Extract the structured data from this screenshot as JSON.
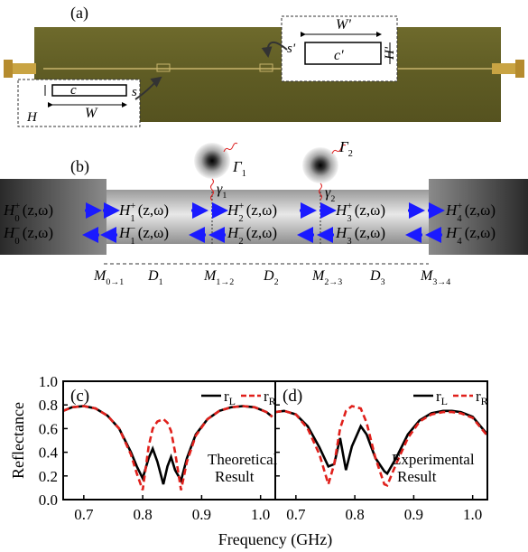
{
  "figure": {
    "a": {
      "label": "(a)",
      "inset_right": {
        "W": "W'",
        "s": "s'",
        "c": "c'",
        "H": "H'"
      },
      "inset_left": {
        "c": "c",
        "W": "W",
        "H": "H",
        "s": "s"
      }
    },
    "b": {
      "label": "(b)",
      "fields": [
        {
          "base": "H",
          "sup": "+",
          "sub": "0",
          "arg": "(z,ω)"
        },
        {
          "base": "H",
          "sup": "−",
          "sub": "0",
          "arg": "(z,ω)"
        },
        {
          "base": "H",
          "sup": "+",
          "sub": "1",
          "arg": "(z,ω)"
        },
        {
          "base": "H",
          "sup": "−",
          "sub": "1",
          "arg": "(z,ω)"
        },
        {
          "base": "H",
          "sup": "+",
          "sub": "2",
          "arg": "(z,ω)"
        },
        {
          "base": "H",
          "sup": "−",
          "sub": "2",
          "arg": "(z,ω)"
        },
        {
          "base": "H",
          "sup": "+",
          "sub": "3",
          "arg": "(z,ω)"
        },
        {
          "base": "H",
          "sup": "−",
          "sub": "3",
          "arg": "(z,ω)"
        },
        {
          "base": "H",
          "sup": "+",
          "sub": "4",
          "arg": "(z,ω)"
        },
        {
          "base": "H",
          "sup": "−",
          "sub": "4",
          "arg": "(z,ω)"
        }
      ],
      "emitters": [
        {
          "Gamma": {
            "base": "Γ",
            "sub": "1"
          },
          "gamma": {
            "base": "γ",
            "sub": "1"
          }
        },
        {
          "Gamma": {
            "base": "Γ",
            "sub": "2"
          },
          "gamma": {
            "base": "γ",
            "sub": "2"
          }
        }
      ],
      "segments": [
        {
          "base": "M",
          "sub": "0→1"
        },
        {
          "base": "D",
          "sub": "1"
        },
        {
          "base": "M",
          "sub": "1→2"
        },
        {
          "base": "D",
          "sub": "2"
        },
        {
          "base": "M",
          "sub": "2→3"
        },
        {
          "base": "D",
          "sub": "3"
        },
        {
          "base": "M",
          "sub": "3→4"
        }
      ]
    }
  },
  "chart_data": [
    {
      "type": "line",
      "label": "(c)",
      "ylabel": "Reflectance",
      "xlabel": "Frequency (GHz)",
      "x": [
        0.665,
        0.68,
        0.7,
        0.72,
        0.74,
        0.76,
        0.78,
        0.79,
        0.8,
        0.81,
        0.817,
        0.825,
        0.835,
        0.842,
        0.848,
        0.855,
        0.865,
        0.875,
        0.89,
        0.91,
        0.93,
        0.95,
        0.97,
        0.99,
        1.01,
        1.02
      ],
      "series": [
        {
          "name": "rL",
          "color": "#000000",
          "dash": false,
          "values": [
            0.75,
            0.78,
            0.79,
            0.77,
            0.71,
            0.6,
            0.4,
            0.28,
            0.18,
            0.35,
            0.43,
            0.32,
            0.13,
            0.28,
            0.36,
            0.25,
            0.16,
            0.35,
            0.55,
            0.68,
            0.75,
            0.78,
            0.79,
            0.78,
            0.74,
            0.7
          ]
        },
        {
          "name": "rR",
          "color": "#e0201b",
          "dash": true,
          "values": [
            0.75,
            0.78,
            0.79,
            0.77,
            0.71,
            0.6,
            0.38,
            0.22,
            0.08,
            0.45,
            0.6,
            0.66,
            0.68,
            0.65,
            0.58,
            0.4,
            0.08,
            0.32,
            0.54,
            0.68,
            0.75,
            0.78,
            0.79,
            0.78,
            0.74,
            0.7
          ]
        }
      ],
      "annotations": [
        "Theoretical",
        "Result"
      ],
      "legend": "upper right",
      "xlim": [
        0.665,
        1.025
      ],
      "ylim": [
        0,
        1
      ],
      "xticks": [
        0.7,
        0.8,
        0.9,
        {
          "value": 1,
          "label": "1.0"
        }
      ],
      "yticks": [
        {
          "value": 0,
          "label": "0.0"
        },
        0.2,
        0.4,
        0.6,
        0.8,
        {
          "value": 1,
          "label": "1.0"
        }
      ],
      "ytick_labels": true
    },
    {
      "type": "line",
      "label": "(d)",
      "x": [
        0.665,
        0.68,
        0.7,
        0.72,
        0.74,
        0.755,
        0.765,
        0.775,
        0.785,
        0.795,
        0.81,
        0.82,
        0.835,
        0.85,
        0.855,
        0.87,
        0.89,
        0.91,
        0.93,
        0.95,
        0.965,
        0.98,
        1.0,
        1.025
      ],
      "series": [
        {
          "name": "rL",
          "color": "#000000",
          "dash": false,
          "values": [
            0.74,
            0.75,
            0.72,
            0.62,
            0.44,
            0.28,
            0.3,
            0.52,
            0.25,
            0.45,
            0.62,
            0.55,
            0.35,
            0.24,
            0.22,
            0.35,
            0.55,
            0.67,
            0.73,
            0.75,
            0.75,
            0.74,
            0.7,
            0.55
          ]
        },
        {
          "name": "rR",
          "color": "#e0201b",
          "dash": true,
          "values": [
            0.74,
            0.75,
            0.72,
            0.6,
            0.38,
            0.13,
            0.3,
            0.6,
            0.75,
            0.79,
            0.77,
            0.65,
            0.35,
            0.13,
            0.12,
            0.3,
            0.52,
            0.66,
            0.72,
            0.74,
            0.74,
            0.73,
            0.69,
            0.54
          ]
        }
      ],
      "annotations": [
        "Experimental",
        "Result"
      ],
      "legend": "upper right",
      "xlim": [
        0.665,
        1.025
      ],
      "ylim": [
        0,
        1
      ],
      "xticks": [
        0.7,
        0.8,
        0.9,
        {
          "value": 1,
          "label": "1.0"
        }
      ],
      "yticks": [
        0,
        0.2,
        0.4,
        0.6,
        0.8,
        1
      ],
      "ytick_labels": false
    }
  ]
}
